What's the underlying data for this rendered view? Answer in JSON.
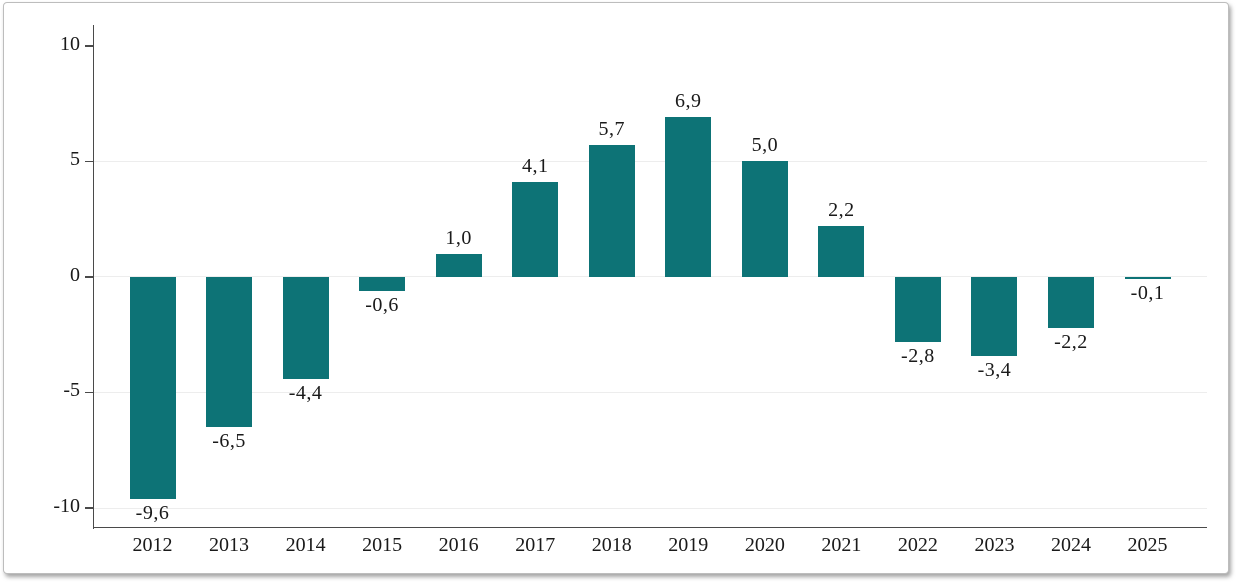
{
  "chart_data": {
    "type": "bar",
    "title": "",
    "xlabel": "",
    "ylabel": "",
    "categories": [
      "2012",
      "2013",
      "2014",
      "2015",
      "2016",
      "2017",
      "2018",
      "2019",
      "2020",
      "2021",
      "2022",
      "2023",
      "2024",
      "2025"
    ],
    "values": [
      -9.6,
      -6.5,
      -4.4,
      -0.6,
      1.0,
      4.1,
      5.7,
      6.9,
      5.0,
      2.2,
      -2.8,
      -3.4,
      -2.2,
      -0.1
    ],
    "value_labels": [
      "-9,6",
      "-6,5",
      "-4,4",
      "-0,6",
      "1,0",
      "4,1",
      "5,7",
      "6,9",
      "5,0",
      "2,2",
      "-2,8",
      "-3,4",
      "-2,2",
      "-0,1"
    ],
    "decimal_separator": ",",
    "yticks": [
      10,
      5,
      0,
      -5,
      -10
    ],
    "ytick_labels": [
      "10",
      "5",
      "0",
      "-5",
      "-10"
    ],
    "gridline_values": [
      5,
      0,
      -5,
      -10
    ],
    "ylim": [
      -10.82,
      10.9
    ],
    "grid": true,
    "legend_position": "none",
    "colors": {
      "bar": "#0d7376",
      "grid": "#ededed",
      "axis": "#4a4a4a",
      "text": "#1a1a1a",
      "frame_border": "#bdbdbd",
      "background": "#ffffff"
    }
  }
}
